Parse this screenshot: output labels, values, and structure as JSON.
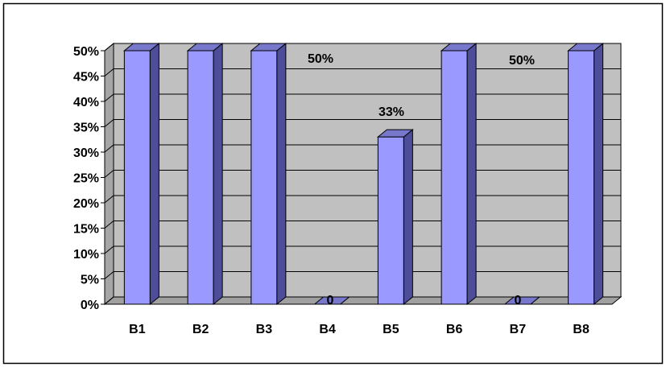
{
  "chart_data": {
    "type": "bar",
    "categories": [
      "B1",
      "B2",
      "B3",
      "B4",
      "B5",
      "B6",
      "B7",
      "B8"
    ],
    "values": [
      50,
      50,
      50,
      0,
      33,
      50,
      0,
      50
    ],
    "y_tick_labels": [
      "0%",
      "5%",
      "10%",
      "15%",
      "20%",
      "25%",
      "30%",
      "35%",
      "40%",
      "45%",
      "50%"
    ],
    "ylim": [
      0,
      50
    ],
    "annotations": [
      {
        "category": "B3",
        "text": "50%"
      },
      {
        "category": "B4",
        "text": "0"
      },
      {
        "category": "B5",
        "text": "33%"
      },
      {
        "category": "B6",
        "text": "50%"
      },
      {
        "category": "B7",
        "text": "0"
      }
    ],
    "grid": true,
    "legend": "none",
    "colors": {
      "bar_front": "#9999ff",
      "bar_top": "#7777cc",
      "bar_side": "#4d4d99",
      "plot_back": "#c0c0c0",
      "gridline": "#000000"
    }
  }
}
